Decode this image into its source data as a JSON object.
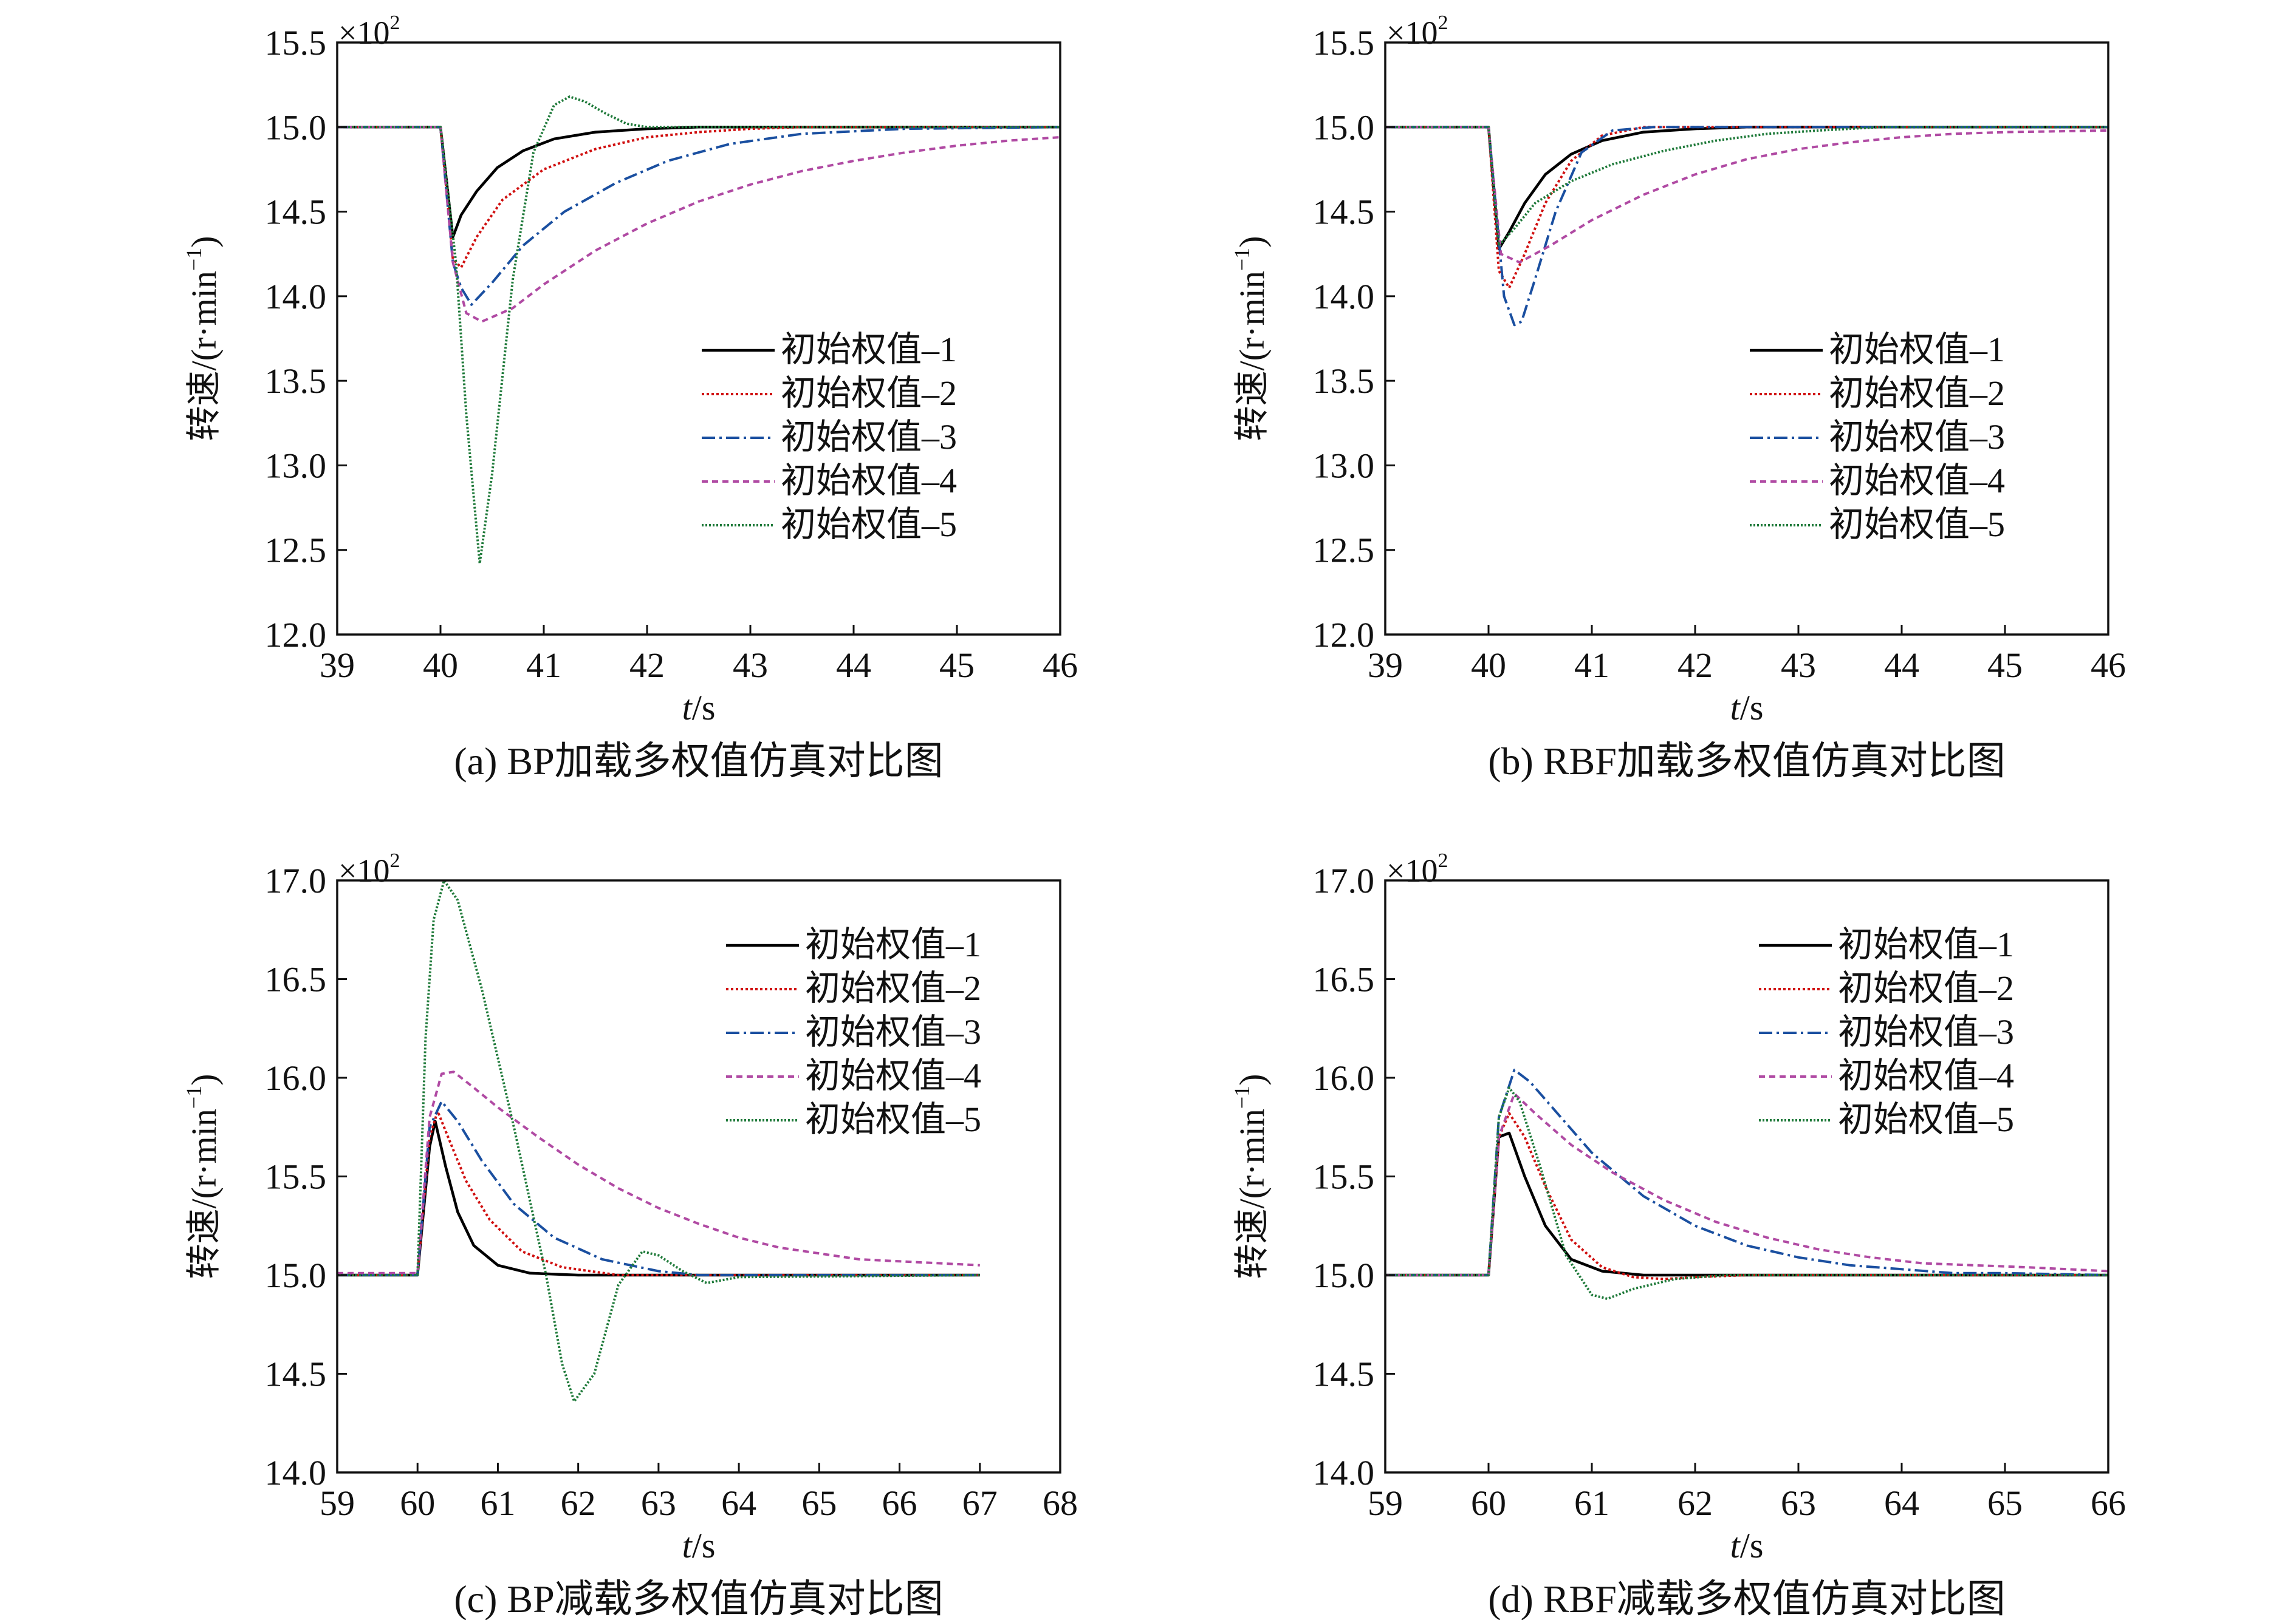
{
  "chart_data": [
    {
      "type": "line",
      "caption": "(a) BP加载多权值仿真对比图",
      "ylabel": "转速/(r·min",
      "ylabel_sup": "−1",
      "ylabel_close": ")",
      "xlabel_var": "t",
      "xlabel_unit": "/s",
      "multiplier": "×10",
      "multiplier_exp": "2",
      "xlim": [
        39,
        46
      ],
      "ylim": [
        12.0,
        15.5
      ],
      "xticks": [
        "39",
        "40",
        "41",
        "42",
        "43",
        "44",
        "45",
        "46"
      ],
      "yticks": [
        "12.0",
        "12.5",
        "13.0",
        "13.5",
        "14.0",
        "14.5",
        "15.0",
        "15.5"
      ],
      "legend_position": "center-right",
      "series": [
        {
          "name": "初始权值–1",
          "color": "#000000",
          "dash": "",
          "x": [
            39,
            40,
            40.12,
            40.2,
            40.35,
            40.55,
            40.8,
            41.1,
            41.5,
            42,
            42.5,
            43,
            46
          ],
          "y": [
            15,
            15,
            14.35,
            14.48,
            14.62,
            14.76,
            14.86,
            14.93,
            14.97,
            14.99,
            15,
            15,
            15
          ]
        },
        {
          "name": "初始权值–2",
          "color": "#d01010",
          "dash": "4 4",
          "x": [
            39,
            40,
            40.12,
            40.2,
            40.35,
            40.6,
            41,
            41.5,
            42,
            42.5,
            43,
            43.5,
            46
          ],
          "y": [
            15,
            15,
            14.22,
            14.17,
            14.35,
            14.57,
            14.75,
            14.87,
            14.94,
            14.97,
            14.99,
            15,
            15
          ]
        },
        {
          "name": "初始权值–3",
          "color": "#1a4fa0",
          "dash": "22 7 4 7",
          "x": [
            39,
            40,
            40.12,
            40.2,
            40.3,
            40.5,
            40.8,
            41.2,
            41.7,
            42.2,
            42.8,
            43.5,
            44.5,
            46
          ],
          "y": [
            15,
            15,
            14.2,
            14.05,
            13.95,
            14.08,
            14.3,
            14.5,
            14.67,
            14.8,
            14.9,
            14.96,
            14.99,
            15
          ]
        },
        {
          "name": "初始权值–4",
          "color": "#b04aa3",
          "dash": "10 7",
          "x": [
            39,
            40,
            40.12,
            40.25,
            40.4,
            40.7,
            41,
            41.5,
            42,
            42.5,
            43,
            43.5,
            44,
            44.5,
            45,
            45.5,
            46
          ],
          "y": [
            15,
            15,
            14.2,
            13.9,
            13.85,
            13.93,
            14.07,
            14.27,
            14.43,
            14.56,
            14.66,
            14.74,
            14.8,
            14.85,
            14.89,
            14.92,
            14.94
          ]
        },
        {
          "name": "初始权值–5",
          "color": "#1f7a3a",
          "dash": "3 3",
          "x": [
            39,
            40,
            40.15,
            40.25,
            40.38,
            40.5,
            40.7,
            40.9,
            41.1,
            41.25,
            41.4,
            41.6,
            41.8,
            42,
            42.3,
            46
          ],
          "y": [
            15,
            15,
            14.2,
            13.3,
            12.42,
            12.95,
            14.1,
            14.85,
            15.13,
            15.18,
            15.15,
            15.08,
            15.02,
            15,
            15,
            15
          ]
        }
      ]
    },
    {
      "type": "line",
      "caption": "(b) RBF加载多权值仿真对比图",
      "ylabel": "转速/(r·min",
      "ylabel_sup": "−1",
      "ylabel_close": ")",
      "xlabel_var": "t",
      "xlabel_unit": "/s",
      "multiplier": "×10",
      "multiplier_exp": "2",
      "xlim": [
        39,
        46
      ],
      "ylim": [
        12.0,
        15.5
      ],
      "xticks": [
        "39",
        "40",
        "41",
        "42",
        "43",
        "44",
        "45",
        "46"
      ],
      "yticks": [
        "12.0",
        "12.5",
        "13.0",
        "13.5",
        "14.0",
        "14.5",
        "15.0",
        "15.5"
      ],
      "legend_position": "center-right",
      "series": [
        {
          "name": "初始权值–1",
          "color": "#000000",
          "dash": "",
          "x": [
            39,
            40,
            40.1,
            40.2,
            40.35,
            40.55,
            40.8,
            41.1,
            41.5,
            42,
            42.5,
            46
          ],
          "y": [
            15,
            15,
            14.28,
            14.38,
            14.55,
            14.72,
            14.84,
            14.92,
            14.97,
            14.99,
            15,
            15
          ]
        },
        {
          "name": "初始权值–2",
          "color": "#d01010",
          "dash": "4 4",
          "x": [
            39,
            40,
            40.1,
            40.2,
            40.35,
            40.55,
            40.8,
            41.1,
            41.5,
            42,
            46
          ],
          "y": [
            15,
            15,
            14.15,
            14.05,
            14.25,
            14.55,
            14.8,
            14.95,
            15,
            15,
            15
          ]
        },
        {
          "name": "初始权值–3",
          "color": "#1a4fa0",
          "dash": "22 7 4 7",
          "x": [
            39,
            40,
            40.15,
            40.25,
            40.32,
            40.45,
            40.65,
            40.9,
            41.2,
            41.6,
            42,
            46
          ],
          "y": [
            15,
            15,
            14.0,
            13.83,
            13.85,
            14.1,
            14.5,
            14.85,
            14.98,
            15,
            15,
            15
          ]
        },
        {
          "name": "初始权值–4",
          "color": "#b04aa3",
          "dash": "10 7",
          "x": [
            39,
            40,
            40.12,
            40.3,
            40.6,
            41,
            41.5,
            42,
            42.5,
            43,
            43.5,
            44,
            44.5,
            45,
            46
          ],
          "y": [
            15,
            15,
            14.25,
            14.2,
            14.3,
            14.45,
            14.6,
            14.72,
            14.81,
            14.87,
            14.91,
            14.94,
            14.96,
            14.97,
            14.98
          ]
        },
        {
          "name": "初始权值–5",
          "color": "#1f7a3a",
          "dash": "3 3",
          "x": [
            39,
            40,
            40.1,
            40.25,
            40.45,
            40.8,
            41.2,
            41.7,
            42.2,
            42.7,
            43.2,
            43.8,
            46
          ],
          "y": [
            15,
            15,
            14.3,
            14.4,
            14.55,
            14.68,
            14.78,
            14.86,
            14.92,
            14.96,
            14.98,
            15,
            15
          ]
        }
      ]
    },
    {
      "type": "line",
      "caption": "(c) BP减载多权值仿真对比图",
      "ylabel": "转速/(r·min",
      "ylabel_sup": "−1",
      "ylabel_close": ")",
      "xlabel_var": "t",
      "xlabel_unit": "/s",
      "multiplier": "×10",
      "multiplier_exp": "2",
      "xlim": [
        59,
        68
      ],
      "ylim": [
        14.0,
        17.0
      ],
      "xticks": [
        "59",
        "60",
        "61",
        "62",
        "63",
        "64",
        "65",
        "66",
        "67",
        "68"
      ],
      "yticks": [
        "14.0",
        "14.5",
        "15.0",
        "15.5",
        "16.0",
        "16.5",
        "17.0"
      ],
      "legend_position": "top-right",
      "series": [
        {
          "name": "初始权值–1",
          "color": "#000000",
          "dash": "",
          "x": [
            59,
            60,
            60.15,
            60.22,
            60.35,
            60.5,
            60.7,
            61,
            61.4,
            62,
            67
          ],
          "y": [
            15,
            15,
            15.65,
            15.78,
            15.55,
            15.32,
            15.15,
            15.05,
            15.01,
            15,
            15
          ]
        },
        {
          "name": "初始权值–2",
          "color": "#d01010",
          "dash": "4 4",
          "x": [
            59,
            60,
            60.15,
            60.25,
            60.4,
            60.6,
            60.9,
            61.3,
            61.8,
            62.5,
            67
          ],
          "y": [
            15,
            15,
            15.7,
            15.83,
            15.68,
            15.48,
            15.28,
            15.12,
            15.04,
            15,
            15
          ]
        },
        {
          "name": "初始权值–3",
          "color": "#1a4fa0",
          "dash": "22 7 4 7",
          "x": [
            59,
            60,
            60.15,
            60.3,
            60.5,
            60.8,
            61.2,
            61.7,
            62.3,
            63,
            63.5,
            67
          ],
          "y": [
            15,
            15,
            15.75,
            15.88,
            15.78,
            15.58,
            15.36,
            15.19,
            15.08,
            15.02,
            15,
            15
          ]
        },
        {
          "name": "初始权值–4",
          "color": "#b04aa3",
          "dash": "10 7",
          "x": [
            59,
            60,
            60.15,
            60.3,
            60.45,
            60.7,
            61,
            61.5,
            62,
            62.5,
            63,
            63.5,
            64,
            64.5,
            65,
            65.5,
            66,
            66.5,
            67
          ],
          "y": [
            15.01,
            15.01,
            15.8,
            16.02,
            16.03,
            15.95,
            15.85,
            15.7,
            15.56,
            15.44,
            15.34,
            15.26,
            15.19,
            15.14,
            15.11,
            15.08,
            15.07,
            15.06,
            15.05
          ]
        },
        {
          "name": "初始权值–5",
          "color": "#1f7a3a",
          "dash": "3 3",
          "x": [
            59,
            60,
            60.1,
            60.2,
            60.33,
            60.5,
            60.8,
            61.2,
            61.6,
            61.8,
            61.95,
            62.2,
            62.5,
            62.8,
            63,
            63.3,
            63.6,
            64,
            67
          ],
          "y": [
            15,
            15,
            16.2,
            16.8,
            17.0,
            16.9,
            16.45,
            15.75,
            15.0,
            14.55,
            14.36,
            14.5,
            14.95,
            15.12,
            15.1,
            15.02,
            14.96,
            14.99,
            15
          ]
        }
      ]
    },
    {
      "type": "line",
      "caption": "(d) RBF减载多权值仿真对比图",
      "ylabel": "转速/(r·min",
      "ylabel_sup": "−1",
      "ylabel_close": ")",
      "xlabel_var": "t",
      "xlabel_unit": "/s",
      "multiplier": "×10",
      "multiplier_exp": "2",
      "xlim": [
        59,
        66
      ],
      "ylim": [
        14.0,
        17.0
      ],
      "xticks": [
        "59",
        "60",
        "61",
        "62",
        "63",
        "64",
        "65",
        "66"
      ],
      "yticks": [
        "14.0",
        "14.5",
        "15.0",
        "15.5",
        "16.0",
        "16.5",
        "17.0"
      ],
      "legend_position": "top-right",
      "series": [
        {
          "name": "初始权值–1",
          "color": "#000000",
          "dash": "",
          "x": [
            59,
            60,
            60.1,
            60.2,
            60.35,
            60.55,
            60.8,
            61.1,
            61.5,
            62,
            66
          ],
          "y": [
            15,
            15,
            15.7,
            15.72,
            15.5,
            15.25,
            15.08,
            15.02,
            15,
            15,
            15
          ]
        },
        {
          "name": "初始权值–2",
          "color": "#d01010",
          "dash": "4 4",
          "x": [
            59,
            60,
            60.1,
            60.2,
            60.35,
            60.55,
            60.8,
            61.1,
            61.4,
            61.7,
            62,
            62.5,
            66
          ],
          "y": [
            15,
            15,
            15.7,
            15.82,
            15.7,
            15.45,
            15.18,
            15.04,
            14.99,
            14.98,
            14.99,
            15,
            15
          ]
        },
        {
          "name": "初始权值–3",
          "color": "#1a4fa0",
          "dash": "22 7 4 7",
          "x": [
            59,
            60,
            60.1,
            60.25,
            60.4,
            60.7,
            61,
            61.5,
            62,
            62.5,
            63,
            63.5,
            64,
            64.5,
            65,
            66
          ],
          "y": [
            15,
            15,
            15.8,
            16.04,
            15.98,
            15.8,
            15.62,
            15.4,
            15.25,
            15.15,
            15.09,
            15.05,
            15.03,
            15.01,
            15.01,
            15.0
          ]
        },
        {
          "name": "初始权值–4",
          "color": "#b04aa3",
          "dash": "10 7",
          "x": [
            59,
            60,
            60.1,
            60.25,
            60.45,
            60.8,
            61.2,
            61.7,
            62.2,
            62.7,
            63.2,
            63.7,
            64.2,
            64.7,
            65.2,
            66
          ],
          "y": [
            15,
            15,
            15.7,
            15.92,
            15.82,
            15.66,
            15.52,
            15.38,
            15.27,
            15.19,
            15.13,
            15.09,
            15.06,
            15.05,
            15.04,
            15.02
          ]
        },
        {
          "name": "初始权值–5",
          "color": "#1f7a3a",
          "dash": "3 3",
          "x": [
            59,
            60,
            60.1,
            60.2,
            60.3,
            60.5,
            60.75,
            61,
            61.15,
            61.4,
            61.8,
            62.3,
            66
          ],
          "y": [
            15,
            15,
            15.8,
            15.95,
            15.88,
            15.55,
            15.1,
            14.9,
            14.88,
            14.93,
            14.98,
            15,
            15
          ]
        }
      ]
    }
  ]
}
